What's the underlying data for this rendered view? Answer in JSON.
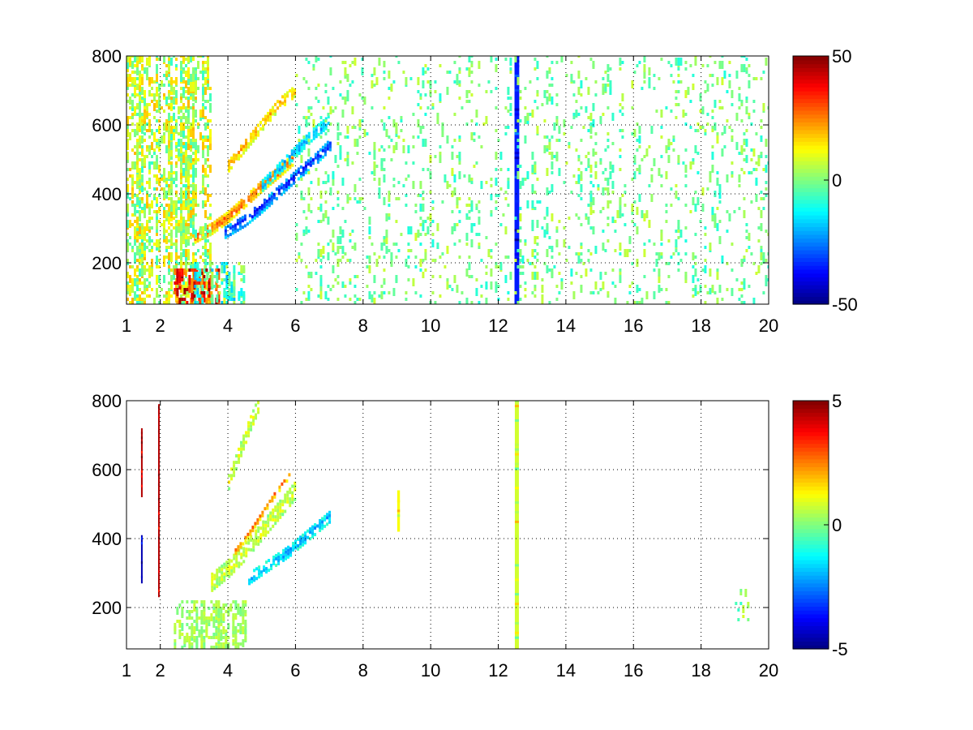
{
  "figure": {
    "background": "#ffffff",
    "colormap": "jet"
  },
  "chart_data": [
    {
      "type": "heatmap",
      "x_ticks": [
        1,
        2,
        4,
        6,
        8,
        10,
        12,
        14,
        16,
        18,
        20
      ],
      "x_tick_labels": [
        "1",
        "2",
        "4",
        "6",
        "8",
        "10",
        "12",
        "14",
        "16",
        "18",
        "20"
      ],
      "y_ticks": [
        200,
        400,
        600,
        800
      ],
      "y_tick_labels": [
        "200",
        "400",
        "600",
        "800"
      ],
      "xlim": [
        1,
        20
      ],
      "ylim": [
        80,
        800
      ],
      "grid": true,
      "clim": [
        -50,
        50
      ],
      "colorbar_ticks": [
        50,
        0,
        -50
      ],
      "colorbar_tick_labels": [
        "50",
        "0",
        "-50"
      ],
      "features": [
        {
          "kind": "curve_band",
          "value": 30,
          "x": [
            3.0,
            3.5,
            4.0,
            4.5,
            5.0,
            5.5,
            5.9
          ],
          "y": [
            270,
            295,
            330,
            375,
            420,
            460,
            495
          ],
          "width": 30
        },
        {
          "kind": "curve_band",
          "value": -38,
          "x": [
            3.9,
            4.5,
            5.0,
            5.5,
            6.0,
            6.6,
            7.0
          ],
          "y": [
            285,
            320,
            360,
            405,
            450,
            500,
            540
          ],
          "width": 32
        },
        {
          "kind": "curve_band",
          "value": 20,
          "x": [
            4.0,
            4.5,
            5.0,
            5.5,
            6.0
          ],
          "y": [
            480,
            540,
            600,
            660,
            700
          ],
          "width": 36
        },
        {
          "kind": "curve_band",
          "value": -22,
          "x": [
            5.0,
            5.5,
            6.0,
            6.5,
            7.0
          ],
          "y": [
            420,
            470,
            520,
            570,
            610
          ],
          "width": 30
        },
        {
          "kind": "vertical_band",
          "value": -35,
          "x": 12.55,
          "y": [
            80,
            800
          ],
          "width": 0.14
        },
        {
          "kind": "noise_region",
          "value_range": [
            -8,
            20
          ],
          "x": [
            1.0,
            3.5
          ],
          "y": [
            80,
            800
          ],
          "density": 0.55
        },
        {
          "kind": "noise_region",
          "value_range": [
            20,
            50
          ],
          "x": [
            2.4,
            3.7
          ],
          "y": [
            80,
            180
          ],
          "density": 0.6
        },
        {
          "kind": "noise_region",
          "value_range": [
            -20,
            10
          ],
          "x": [
            3.0,
            4.5
          ],
          "y": [
            80,
            200
          ],
          "density": 0.5
        },
        {
          "kind": "noise_region",
          "value_range": [
            -10,
            8
          ],
          "x": [
            6.0,
            20.0
          ],
          "y": [
            80,
            800
          ],
          "density": 0.11
        }
      ]
    },
    {
      "type": "heatmap",
      "x_ticks": [
        1,
        2,
        4,
        6,
        8,
        10,
        12,
        14,
        16,
        18,
        20
      ],
      "x_tick_labels": [
        "1",
        "2",
        "4",
        "6",
        "8",
        "10",
        "12",
        "14",
        "16",
        "18",
        "20"
      ],
      "y_ticks": [
        200,
        400,
        600,
        800
      ],
      "y_tick_labels": [
        "200",
        "400",
        "600",
        "800"
      ],
      "xlim": [
        1,
        20
      ],
      "ylim": [
        80,
        800
      ],
      "grid": true,
      "clim": [
        -5,
        5
      ],
      "colorbar_ticks": [
        5,
        0,
        -5
      ],
      "colorbar_tick_labels": [
        "5",
        "0",
        "-5"
      ],
      "features": [
        {
          "kind": "curve_band",
          "value": 0.8,
          "x": [
            3.5,
            4.0,
            4.5,
            5.0,
            5.5,
            6.0
          ],
          "y": [
            270,
            310,
            360,
            420,
            480,
            540
          ],
          "width": 50
        },
        {
          "kind": "curve_band",
          "value": 3.0,
          "x": [
            4.2,
            4.6,
            5.0,
            5.4,
            5.8
          ],
          "y": [
            360,
            410,
            470,
            530,
            580
          ],
          "width": 14
        },
        {
          "kind": "curve_band",
          "value": -2.2,
          "x": [
            4.6,
            5.2,
            5.8,
            6.4,
            7.0
          ],
          "y": [
            280,
            320,
            360,
            410,
            460
          ],
          "width": 30
        },
        {
          "kind": "curve_band",
          "value": 1.0,
          "x": [
            4.0,
            4.3,
            4.6,
            4.9
          ],
          "y": [
            560,
            640,
            720,
            790
          ],
          "width": 40
        },
        {
          "kind": "vertical_band",
          "value": 0.8,
          "x": 12.55,
          "y": [
            80,
            800
          ],
          "width": 0.12
        },
        {
          "kind": "vertical_band",
          "value": 1.2,
          "x": 9.05,
          "y": [
            420,
            540
          ],
          "width": 0.08
        },
        {
          "kind": "vertical_band",
          "value": 4.5,
          "x": 1.45,
          "y": [
            520,
            720
          ],
          "width": 0.04
        },
        {
          "kind": "vertical_band",
          "value": -4.5,
          "x": 1.45,
          "y": [
            270,
            410
          ],
          "width": 0.04
        },
        {
          "kind": "vertical_band",
          "value": 4.5,
          "x": 1.95,
          "y": [
            230,
            790
          ],
          "width": 0.03
        },
        {
          "kind": "noise_region",
          "value_range": [
            -0.2,
            0.8
          ],
          "x": [
            2.4,
            4.5
          ],
          "y": [
            80,
            220
          ],
          "density": 0.55
        },
        {
          "kind": "noise_region",
          "value_range": [
            -1,
            1
          ],
          "x": [
            19.0,
            19.4
          ],
          "y": [
            160,
            260
          ],
          "density": 0.12
        }
      ]
    }
  ]
}
